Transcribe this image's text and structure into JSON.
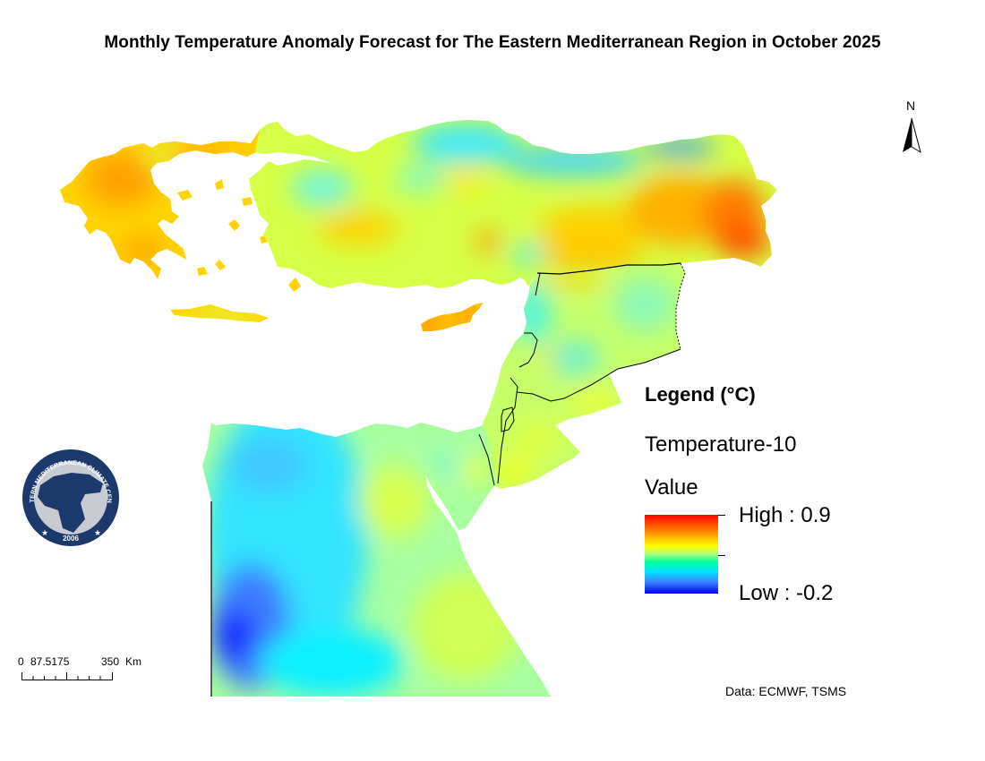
{
  "title": "Monthly Temperature Anomaly Forecast for The Eastern Mediterranean Region in October 2025",
  "north_arrow": {
    "label": "N",
    "icon": "north-arrow-icon"
  },
  "legend": {
    "heading": "Legend (°C)",
    "layer_name": "Temperature-10",
    "field_name": "Value",
    "high_label": "High : 0.9",
    "low_label": "Low : -0.2",
    "high_value": 0.9,
    "low_value": -0.2,
    "ramp_colors": [
      "#ff0000",
      "#ff8c00",
      "#ffff00",
      "#a8ff80",
      "#00ff9a",
      "#00e6ff",
      "#3c7dff",
      "#0000ff"
    ]
  },
  "scale_bar": {
    "labels": [
      "0",
      "87.5175",
      "350",
      "Km"
    ]
  },
  "source": "Data: ECMWF, TSMS",
  "logo": {
    "ring_text": "EASTERN MEDITERRANEAN CLIMATE CENTRE",
    "year": "2006",
    "colors": {
      "navy": "#1b3a6b",
      "grey": "#c8ccd2"
    }
  },
  "regions": [
    {
      "name": "Greece",
      "anomaly_description": "warm (orange/yellow)"
    },
    {
      "name": "Turkey west",
      "anomaly_description": "near-normal (yellow-green)"
    },
    {
      "name": "Turkey Black Sea coast",
      "anomaly_description": "cool (cyan/blue)"
    },
    {
      "name": "Turkey east",
      "anomaly_description": "warmest (orange/red)"
    },
    {
      "name": "Cyprus",
      "anomaly_description": "warm (orange)"
    },
    {
      "name": "Syria / Levant",
      "anomaly_description": "near-normal (green-yellow)"
    },
    {
      "name": "Egypt west",
      "anomaly_description": "coolest (blue)"
    },
    {
      "name": "Egypt east / Sinai",
      "anomaly_description": "near-normal (green-yellow)"
    }
  ]
}
